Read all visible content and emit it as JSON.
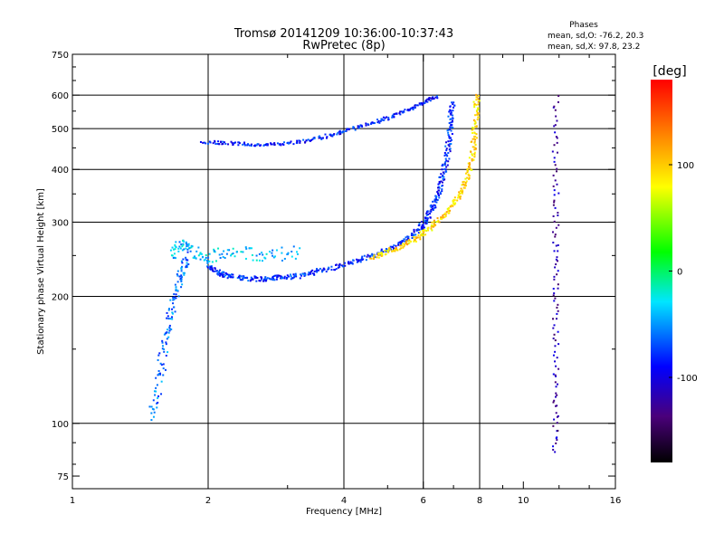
{
  "chart_data": {
    "type": "scatter",
    "title": "Tromsø 20141209 10:36:00-10:37:43",
    "subtitle": "RwPretec (8p)",
    "xlabel": "Frequency [MHz]",
    "ylabel": "Stationary phase Virtual Height [km]",
    "xscale": "log",
    "yscale": "log",
    "xlim": [
      1,
      16
    ],
    "ylim": [
      70,
      750
    ],
    "x_ticks": [
      1,
      2,
      4,
      6,
      8,
      10,
      16
    ],
    "x_tick_labels": [
      "1",
      "2",
      "4",
      "6",
      "8",
      "10",
      "16"
    ],
    "y_ticks": [
      75,
      100,
      200,
      300,
      400,
      500,
      600,
      750
    ],
    "y_tick_labels": [
      "75",
      "100",
      "200",
      "300",
      "400",
      "500",
      "600",
      "750"
    ],
    "x_grid": [
      2,
      4,
      6,
      8
    ],
    "y_grid": [
      100,
      200,
      300,
      400,
      500,
      600
    ],
    "phase_box": {
      "title": "Phases",
      "line_o": "mean, sd,O: -76.2, 20.3",
      "line_x": "mean, sd,X:  97.8, 23.2"
    },
    "colorbar": {
      "unit": "[deg]",
      "range": [
        -180,
        180
      ],
      "ticks": [
        100,
        0,
        -100
      ],
      "tick_labels": [
        "100",
        "0",
        "-100"
      ],
      "colormap": "rainbow"
    },
    "traces": [
      {
        "name": "F-layer O-mode trace",
        "phase": -80,
        "spread_km": 6,
        "points": [
          [
            2.0,
            235
          ],
          [
            2.1,
            228
          ],
          [
            2.2,
            224
          ],
          [
            2.4,
            221
          ],
          [
            2.6,
            220
          ],
          [
            2.8,
            221
          ],
          [
            3.0,
            222
          ],
          [
            3.3,
            225
          ],
          [
            3.6,
            231
          ],
          [
            4.0,
            238
          ],
          [
            4.4,
            245
          ],
          [
            4.8,
            253
          ],
          [
            5.2,
            263
          ],
          [
            5.6,
            276
          ],
          [
            5.9,
            290
          ],
          [
            6.1,
            305
          ],
          [
            6.3,
            325
          ],
          [
            6.5,
            350
          ],
          [
            6.6,
            380
          ],
          [
            6.75,
            420
          ],
          [
            6.85,
            470
          ],
          [
            6.9,
            520
          ],
          [
            6.95,
            580
          ]
        ]
      },
      {
        "name": "F-layer X-mode trace",
        "phase": 95,
        "spread_km": 6,
        "points": [
          [
            4.6,
            248
          ],
          [
            5.0,
            255
          ],
          [
            5.4,
            264
          ],
          [
            5.8,
            275
          ],
          [
            6.2,
            290
          ],
          [
            6.6,
            308
          ],
          [
            7.0,
            330
          ],
          [
            7.3,
            355
          ],
          [
            7.55,
            390
          ],
          [
            7.7,
            430
          ],
          [
            7.8,
            480
          ],
          [
            7.85,
            540
          ],
          [
            7.9,
            600
          ]
        ]
      },
      {
        "name": "Multi-hop echo trace",
        "phase": -85,
        "spread_km": 8,
        "points": [
          [
            1.95,
            465
          ],
          [
            2.2,
            462
          ],
          [
            2.5,
            458
          ],
          [
            2.8,
            458
          ],
          [
            3.2,
            465
          ],
          [
            3.6,
            477
          ],
          [
            4.0,
            492
          ],
          [
            4.5,
            510
          ],
          [
            5.0,
            530
          ],
          [
            5.5,
            552
          ],
          [
            6.0,
            575
          ],
          [
            6.4,
            595
          ]
        ]
      },
      {
        "name": "Lower cluster",
        "phase": -60,
        "spread_km": 20,
        "points": [
          [
            1.5,
            105
          ],
          [
            1.55,
            125
          ],
          [
            1.6,
            150
          ],
          [
            1.65,
            180
          ],
          [
            1.7,
            205
          ],
          [
            1.75,
            230
          ],
          [
            1.8,
            250
          ]
        ]
      },
      {
        "name": "Upper cluster",
        "phase": -40,
        "spread_km": 18,
        "points": [
          [
            1.65,
            250
          ],
          [
            1.75,
            265
          ],
          [
            1.85,
            255
          ],
          [
            2.0,
            248
          ],
          [
            2.3,
            255
          ],
          [
            2.7,
            250
          ],
          [
            3.2,
            255
          ]
        ]
      },
      {
        "name": "Vertical stripe",
        "phase": -120,
        "spread_km": 2,
        "points": [
          [
            11.8,
            85
          ],
          [
            11.8,
            120
          ],
          [
            11.8,
            180
          ],
          [
            11.8,
            260
          ],
          [
            11.8,
            380
          ],
          [
            11.8,
            600
          ]
        ]
      }
    ]
  }
}
